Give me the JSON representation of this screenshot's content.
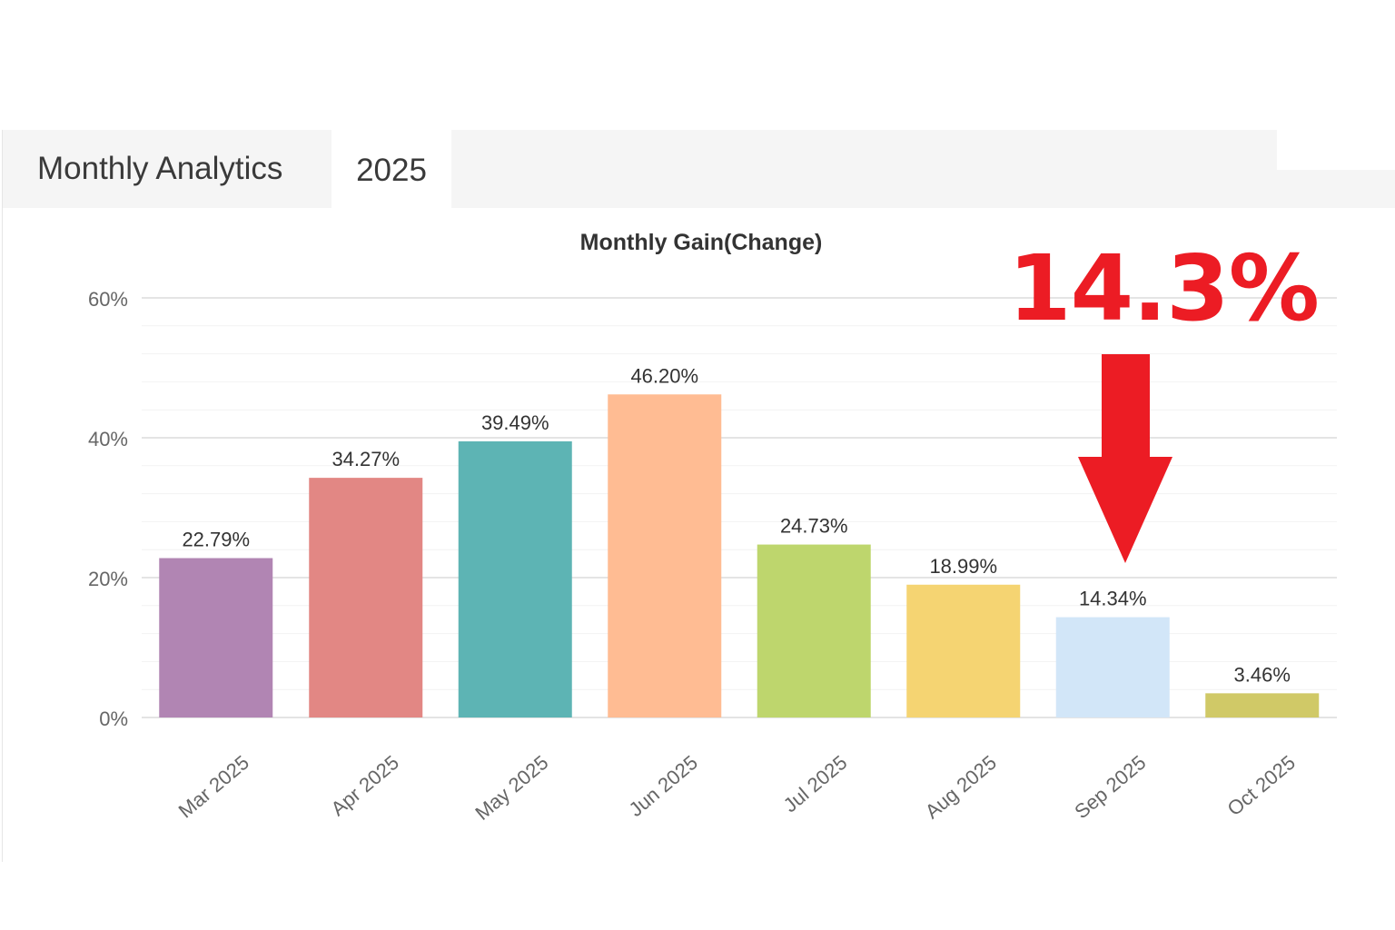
{
  "tabs": {
    "analytics_label": "Monthly Analytics",
    "year_label": "2025"
  },
  "callout": {
    "text": "14.3%",
    "color": "#ec1c24",
    "arrow": "down-arrow-icon"
  },
  "chart_data": {
    "type": "bar",
    "title": "Monthly Gain(Change)",
    "xlabel": "",
    "ylabel": "",
    "categories": [
      "Mar 2025",
      "Apr 2025",
      "May 2025",
      "Jun 2025",
      "Jul 2025",
      "Aug 2025",
      "Sep 2025",
      "Oct 2025"
    ],
    "values": [
      22.79,
      34.27,
      39.49,
      46.2,
      24.73,
      18.99,
      14.34,
      3.46
    ],
    "value_labels": [
      "22.79%",
      "34.27%",
      "39.49%",
      "46.20%",
      "24.73%",
      "18.99%",
      "14.34%",
      "3.46%"
    ],
    "colors": [
      "#b185b3",
      "#e28784",
      "#5db4b4",
      "#ffbc93",
      "#bed66d",
      "#f5d472",
      "#d2e6f8",
      "#d0c967"
    ],
    "ylim": [
      0,
      60
    ],
    "yticks": [
      0,
      20,
      40,
      60
    ],
    "ytick_labels": [
      "0%",
      "20%",
      "40%",
      "60%"
    ],
    "grid": true,
    "legend": "none"
  }
}
